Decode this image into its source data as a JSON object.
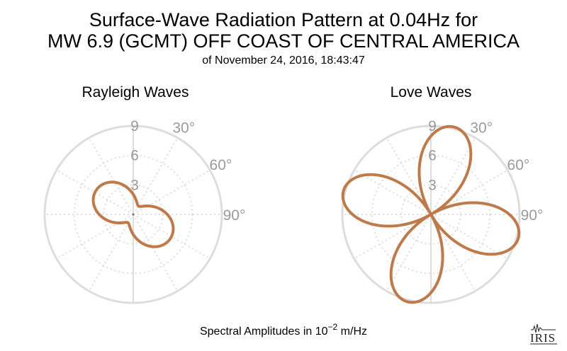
{
  "header": {
    "title_line1": "Surface-Wave Radiation Pattern at 0.04Hz for",
    "title_line2": "MW 6.9 (GCMT) OFF COAST OF CENTRAL AMERICA",
    "subtitle": "of November 24, 2016, 18:43:47"
  },
  "footer": {
    "label_prefix": "Spectral Amplitudes in ",
    "unit_base": "10",
    "unit_exp": "−2",
    "unit_suffix": " m/Hz"
  },
  "logo": {
    "text": "IRIS"
  },
  "colors": {
    "pattern": "#c07a4a",
    "grid": "#dddddd",
    "tick_label": "#9a9a9a"
  },
  "chart_data": [
    {
      "type": "polar",
      "title": "Rayleigh Waves",
      "radial_ticks": [
        3,
        6,
        9
      ],
      "radial_tick_labels": [
        "3",
        "6",
        "9"
      ],
      "rmax": 9,
      "angle_tick_labels": [
        "30°",
        "60°",
        "90°"
      ],
      "angle_convention": "clockwise from north, degrees",
      "pattern": {
        "form": "a+b*cos(2*(theta-phi))",
        "a": 2.75,
        "b": 1.75,
        "phi_deg": 123
      }
    },
    {
      "type": "polar",
      "title": "Love Waves",
      "radial_ticks": [
        3,
        6,
        9
      ],
      "radial_tick_labels": [
        "3",
        "6",
        "9"
      ],
      "rmax": 9,
      "angle_tick_labels": [
        "30°",
        "60°",
        "90°"
      ],
      "angle_convention": "clockwise from north, degrees",
      "pattern": {
        "form": "A*|sin(2*(theta-phi))|",
        "A": 9.2,
        "phi_deg": 60
      }
    }
  ]
}
